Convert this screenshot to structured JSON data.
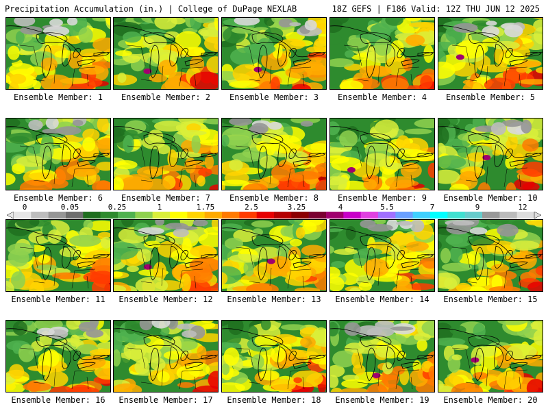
{
  "header": {
    "left_title": "Precipitation Accumulation (in.) | College of DuPage NEXLAB",
    "right_title": "18Z GEFS | F186 Valid: 12Z THU JUN 12 2025"
  },
  "colorbar": {
    "tick_labels": [
      "0",
      "0.05",
      "0.25",
      "1",
      "1.75",
      "2.5",
      "3.25",
      "4",
      "5.5",
      "7",
      "9",
      "12"
    ],
    "colors": [
      "#e6e6e6",
      "#bdbdbd",
      "#969696",
      "#6e6e6e",
      "#1e6e1e",
      "#2e8b2e",
      "#4fb24f",
      "#8fd14f",
      "#d9ef3b",
      "#ffff00",
      "#ffd400",
      "#ffaa00",
      "#ff7a00",
      "#ff3c00",
      "#e60000",
      "#b40000",
      "#8b0000",
      "#7a0030",
      "#a0006e",
      "#c800c8",
      "#e040e0",
      "#a070ff",
      "#6aa0ff",
      "#40d0ff",
      "#00ffff",
      "#40e0d0",
      "#66cccc",
      "#999999",
      "#bbbbbb",
      "#dddddd"
    ]
  },
  "panels": [
    {
      "label": "Ensemble Member: 1"
    },
    {
      "label": "Ensemble Member: 2"
    },
    {
      "label": "Ensemble Member: 3"
    },
    {
      "label": "Ensemble Member: 4"
    },
    {
      "label": "Ensemble Member: 5"
    },
    {
      "label": "Ensemble Member: 6"
    },
    {
      "label": "Ensemble Member: 7"
    },
    {
      "label": "Ensemble Member: 8"
    },
    {
      "label": "Ensemble Member: 9"
    },
    {
      "label": "Ensemble Member: 10"
    },
    {
      "label": "Ensemble Member: 11"
    },
    {
      "label": "Ensemble Member: 12"
    },
    {
      "label": "Ensemble Member: 13"
    },
    {
      "label": "Ensemble Member: 14"
    },
    {
      "label": "Ensemble Member: 15"
    },
    {
      "label": "Ensemble Member: 16"
    },
    {
      "label": "Ensemble Member: 17"
    },
    {
      "label": "Ensemble Member: 18"
    },
    {
      "label": "Ensemble Member: 19"
    },
    {
      "label": "Ensemble Member: 20"
    }
  ]
}
